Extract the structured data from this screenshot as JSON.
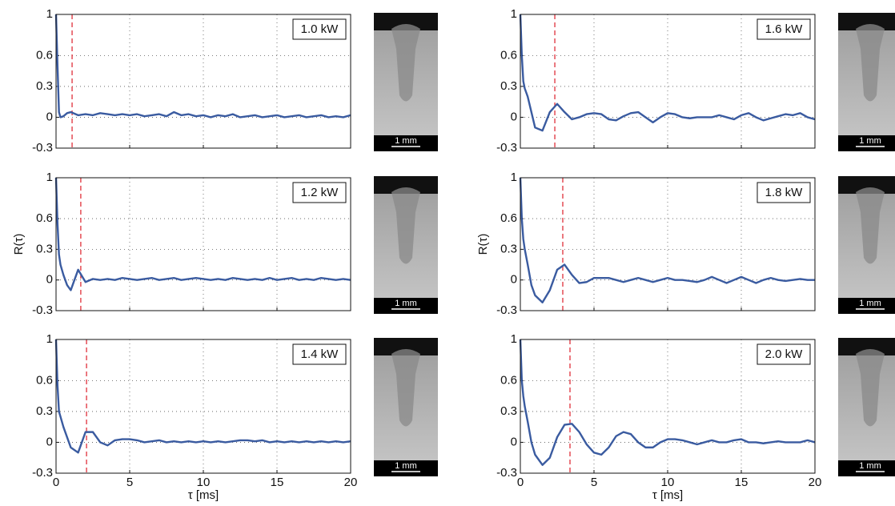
{
  "chart_data": [
    {
      "type": "line",
      "label": "1.0 kW",
      "inset_label": "1 mm",
      "color": "#3a5ba0",
      "peak_marker": 1.09,
      "peak_marker_color": "#e0303a",
      "xlim": [
        0,
        20
      ],
      "ylim": [
        -0.3,
        1
      ],
      "xticks": [
        0,
        5,
        10,
        15,
        20
      ],
      "yticks": [
        -0.3,
        0,
        0.3,
        0.6,
        1
      ],
      "grid": true,
      "show_xtick_labels": false,
      "x": [
        0,
        0.1,
        0.2,
        0.3,
        0.5,
        0.75,
        1,
        1.5,
        2,
        2.5,
        3,
        3.5,
        4,
        4.5,
        5,
        5.5,
        6,
        6.5,
        7,
        7.5,
        8,
        8.5,
        9,
        9.5,
        10,
        10.5,
        11,
        11.5,
        12,
        12.5,
        13,
        13.5,
        14,
        14.5,
        15,
        15.5,
        16,
        16.5,
        17,
        17.5,
        18,
        18.5,
        19,
        19.5,
        20
      ],
      "values": [
        1,
        0.5,
        0.05,
        0.0,
        0.01,
        0.04,
        0.05,
        0.02,
        0.03,
        0.02,
        0.04,
        0.03,
        0.02,
        0.03,
        0.02,
        0.03,
        0.01,
        0.02,
        0.03,
        0.01,
        0.05,
        0.02,
        0.03,
        0.01,
        0.02,
        0.0,
        0.02,
        0.01,
        0.03,
        0.0,
        0.01,
        0.02,
        0.0,
        0.01,
        0.02,
        0.0,
        0.01,
        0.02,
        0.0,
        0.01,
        0.02,
        0.0,
        0.01,
        0.0,
        0.02
      ]
    },
    {
      "type": "line",
      "label": "1.2 kW",
      "inset_label": "1 mm",
      "ylabel": "R(τ)",
      "color": "#3a5ba0",
      "peak_marker": 1.68,
      "peak_marker_color": "#e0303a",
      "xlim": [
        0,
        20
      ],
      "ylim": [
        -0.3,
        1
      ],
      "xticks": [
        0,
        5,
        10,
        15,
        20
      ],
      "yticks": [
        -0.3,
        0,
        0.3,
        0.6,
        1
      ],
      "grid": true,
      "show_xtick_labels": false,
      "x": [
        0,
        0.1,
        0.2,
        0.3,
        0.5,
        0.75,
        1,
        1.5,
        2,
        2.5,
        3,
        3.5,
        4,
        4.5,
        5,
        5.5,
        6,
        6.5,
        7,
        7.5,
        8,
        8.5,
        9,
        9.5,
        10,
        10.5,
        11,
        11.5,
        12,
        12.5,
        13,
        13.5,
        14,
        14.5,
        15,
        15.5,
        16,
        16.5,
        17,
        17.5,
        18,
        18.5,
        19,
        19.5,
        20
      ],
      "values": [
        1,
        0.55,
        0.25,
        0.15,
        0.05,
        -0.05,
        -0.1,
        0.1,
        -0.02,
        0.01,
        0.0,
        0.01,
        0.0,
        0.02,
        0.01,
        0.0,
        0.01,
        0.02,
        0.0,
        0.01,
        0.02,
        0.0,
        0.01,
        0.02,
        0.01,
        0.0,
        0.01,
        0.0,
        0.02,
        0.01,
        0.0,
        0.01,
        0.0,
        0.02,
        0.0,
        0.01,
        0.02,
        0.0,
        0.01,
        0.0,
        0.02,
        0.01,
        0.0,
        0.01,
        0.0
      ]
    },
    {
      "type": "line",
      "label": "1.4 kW",
      "inset_label": "1 mm",
      "xlabel": "τ [ms]",
      "color": "#3a5ba0",
      "peak_marker": 2.07,
      "peak_marker_color": "#e0303a",
      "xlim": [
        0,
        20
      ],
      "ylim": [
        -0.3,
        1
      ],
      "xticks": [
        0,
        5,
        10,
        15,
        20
      ],
      "yticks": [
        -0.3,
        0,
        0.3,
        0.6,
        1
      ],
      "grid": true,
      "show_xtick_labels": true,
      "x": [
        0,
        0.1,
        0.2,
        0.3,
        0.5,
        0.75,
        1,
        1.5,
        2,
        2.5,
        3,
        3.5,
        4,
        4.5,
        5,
        5.5,
        6,
        6.5,
        7,
        7.5,
        8,
        8.5,
        9,
        9.5,
        10,
        10.5,
        11,
        11.5,
        12,
        12.5,
        13,
        13.5,
        14,
        14.5,
        15,
        15.5,
        16,
        16.5,
        17,
        17.5,
        18,
        18.5,
        19,
        19.5,
        20
      ],
      "values": [
        1,
        0.55,
        0.3,
        0.25,
        0.15,
        0.05,
        -0.05,
        -0.1,
        0.1,
        0.1,
        0.0,
        -0.03,
        0.02,
        0.03,
        0.03,
        0.02,
        0.0,
        0.01,
        0.02,
        0.0,
        0.01,
        0.0,
        0.01,
        0.0,
        0.01,
        0.0,
        0.01,
        0.0,
        0.01,
        0.02,
        0.02,
        0.01,
        0.02,
        0.0,
        0.01,
        0.0,
        0.01,
        0.0,
        0.01,
        0.0,
        0.01,
        0.0,
        0.01,
        0.0,
        0.01
      ]
    },
    {
      "type": "line",
      "label": "1.6 kW",
      "inset_label": "1 mm",
      "color": "#3a5ba0",
      "peak_marker": 2.34,
      "peak_marker_color": "#e0303a",
      "xlim": [
        0,
        20
      ],
      "ylim": [
        -0.3,
        1
      ],
      "xticks": [
        0,
        5,
        10,
        15,
        20
      ],
      "yticks": [
        -0.3,
        0,
        0.3,
        0.6,
        1
      ],
      "grid": true,
      "show_xtick_labels": false,
      "x": [
        0,
        0.1,
        0.2,
        0.3,
        0.5,
        0.75,
        1,
        1.5,
        2,
        2.5,
        3,
        3.5,
        4,
        4.5,
        5,
        5.5,
        6,
        6.5,
        7,
        7.5,
        8,
        8.5,
        9,
        9.5,
        10,
        10.5,
        11,
        11.5,
        12,
        12.5,
        13,
        13.5,
        14,
        14.5,
        15,
        15.5,
        16,
        16.5,
        17,
        17.5,
        18,
        18.5,
        19,
        19.5,
        20
      ],
      "values": [
        1,
        0.6,
        0.35,
        0.28,
        0.2,
        0.05,
        -0.1,
        -0.13,
        0.05,
        0.13,
        0.05,
        -0.02,
        0.0,
        0.03,
        0.04,
        0.03,
        -0.02,
        -0.03,
        0.01,
        0.04,
        0.05,
        0.0,
        -0.05,
        0.0,
        0.04,
        0.03,
        0.0,
        -0.01,
        0.0,
        0.0,
        0.0,
        0.02,
        0.0,
        -0.02,
        0.02,
        0.04,
        0.0,
        -0.03,
        -0.01,
        0.01,
        0.03,
        0.02,
        0.04,
        0.0,
        -0.02
      ]
    },
    {
      "type": "line",
      "label": "1.8 kW",
      "inset_label": "1 mm",
      "ylabel": "R(τ)",
      "color": "#3a5ba0",
      "peak_marker": 2.88,
      "peak_marker_color": "#e0303a",
      "xlim": [
        0,
        20
      ],
      "ylim": [
        -0.3,
        1
      ],
      "xticks": [
        0,
        5,
        10,
        15,
        20
      ],
      "yticks": [
        -0.3,
        0,
        0.3,
        0.6,
        1
      ],
      "grid": true,
      "show_xtick_labels": false,
      "x": [
        0,
        0.1,
        0.2,
        0.3,
        0.5,
        0.75,
        1,
        1.5,
        2,
        2.5,
        3,
        3.5,
        4,
        4.5,
        5,
        5.5,
        6,
        6.5,
        7,
        7.5,
        8,
        8.5,
        9,
        9.5,
        10,
        10.5,
        11,
        11.5,
        12,
        12.5,
        13,
        13.5,
        14,
        14.5,
        15,
        15.5,
        16,
        16.5,
        17,
        17.5,
        18,
        18.5,
        19,
        19.5,
        20
      ],
      "values": [
        1,
        0.6,
        0.4,
        0.3,
        0.15,
        -0.05,
        -0.15,
        -0.22,
        -0.1,
        0.1,
        0.15,
        0.05,
        -0.03,
        -0.02,
        0.02,
        0.02,
        0.02,
        0.0,
        -0.02,
        0.0,
        0.02,
        0.0,
        -0.02,
        0.0,
        0.02,
        0.0,
        0.0,
        -0.01,
        -0.02,
        0.0,
        0.03,
        0.0,
        -0.03,
        0.0,
        0.03,
        0.0,
        -0.03,
        0.0,
        0.02,
        0.0,
        -0.01,
        0.0,
        0.01,
        0.0,
        0.0
      ]
    },
    {
      "type": "line",
      "label": "2.0 kW",
      "inset_label": "1 mm",
      "xlabel": "τ [ms]",
      "color": "#3a5ba0",
      "peak_marker": 3.37,
      "peak_marker_color": "#e0303a",
      "xlim": [
        0,
        20
      ],
      "ylim": [
        -0.3,
        1
      ],
      "xticks": [
        0,
        5,
        10,
        15,
        20
      ],
      "yticks": [
        -0.3,
        0,
        0.3,
        0.6,
        1
      ],
      "grid": true,
      "show_xtick_labels": true,
      "x": [
        0,
        0.1,
        0.2,
        0.3,
        0.5,
        0.75,
        1,
        1.5,
        2,
        2.5,
        3,
        3.5,
        4,
        4.5,
        5,
        5.5,
        6,
        6.5,
        7,
        7.5,
        8,
        8.5,
        9,
        9.5,
        10,
        10.5,
        11,
        11.5,
        12,
        12.5,
        13,
        13.5,
        14,
        14.5,
        15,
        15.5,
        16,
        16.5,
        17,
        17.5,
        18,
        18.5,
        19,
        19.5,
        20
      ],
      "values": [
        1,
        0.6,
        0.45,
        0.35,
        0.2,
        0.0,
        -0.12,
        -0.22,
        -0.15,
        0.05,
        0.17,
        0.18,
        0.1,
        -0.02,
        -0.1,
        -0.12,
        -0.05,
        0.06,
        0.1,
        0.08,
        0.0,
        -0.05,
        -0.05,
        0.0,
        0.03,
        0.03,
        0.02,
        0.0,
        -0.02,
        0.0,
        0.02,
        0.0,
        0.0,
        0.02,
        0.03,
        0.0,
        0.0,
        -0.01,
        0.0,
        0.01,
        0.0,
        0.0,
        0.0,
        0.02,
        0.0
      ]
    }
  ]
}
